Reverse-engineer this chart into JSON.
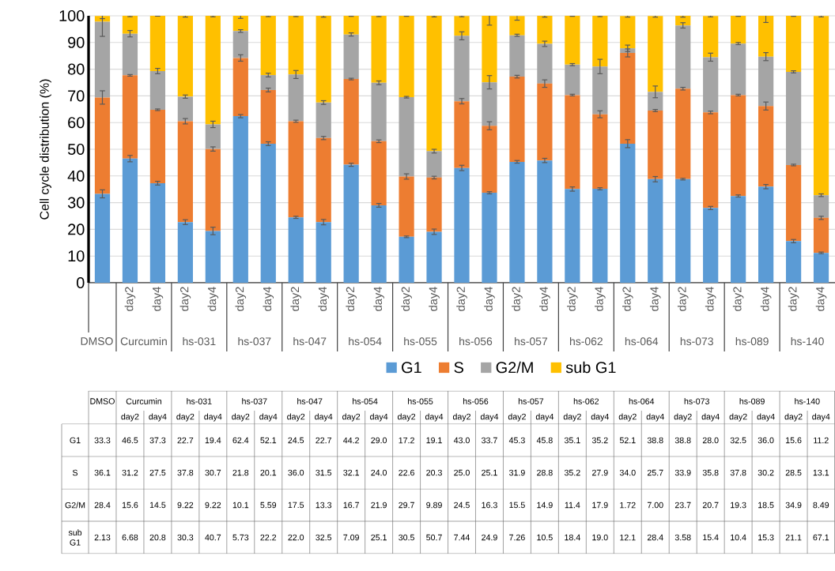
{
  "chart_data": {
    "type": "bar",
    "stacked": true,
    "ylabel": "Cell cycle distribution (%)",
    "categories": [
      null,
      "day2",
      "day4",
      "day2",
      "day4",
      "day2",
      "day4",
      "day2",
      "day4",
      "day2",
      "day4",
      "day2",
      "day4",
      "day2",
      "day4",
      "day2",
      "day4",
      "day2",
      "day4",
      "day2",
      "day4",
      "day2",
      "day4",
      "day2",
      "day4",
      "day2",
      "day4"
    ],
    "annotations": [
      "DMSO",
      "Curcumin",
      "hs-031",
      "hs-037",
      "hs-047",
      "hs-054",
      "hs-055",
      "hs-056",
      "hs-057",
      "hs-062",
      "hs-064",
      "hs-073",
      "hs-089",
      "hs-140"
    ],
    "series": [
      {
        "name": "G1",
        "color": "#5b9bd5",
        "values": [
          33.3,
          46.5,
          37.3,
          22.7,
          19.4,
          62.4,
          52.1,
          24.5,
          22.7,
          44.2,
          29.0,
          17.2,
          19.1,
          43.0,
          33.7,
          45.3,
          45.8,
          35.1,
          35.2,
          52.1,
          38.8,
          38.8,
          28.0,
          32.5,
          36.0,
          15.6,
          11.2
        ],
        "value_labels": [
          "33.3",
          "46.5",
          "37.3",
          "22.7",
          "19.4",
          "62.4",
          "52.1",
          "24.5",
          "22.7",
          "44.2",
          "29.0",
          "17.2",
          "19.1",
          "43.0",
          "33.7",
          "45.3",
          "45.8",
          "35.1",
          "35.2",
          "52.1",
          "38.8",
          "38.8",
          "28.0",
          "32.5",
          "36.0",
          "15.6",
          "11.2"
        ],
        "errors": [
          1.5,
          1.2,
          0.7,
          0.9,
          1.4,
          0.6,
          0.7,
          0.4,
          1.0,
          0.6,
          0.7,
          0.3,
          1.0,
          1.0,
          0.4,
          0.5,
          0.8,
          0.8,
          0.4,
          1.5,
          1.0,
          0.3,
          0.6,
          0.4,
          0.8,
          0.6,
          0.3
        ]
      },
      {
        "name": "S",
        "color": "#ed7d31",
        "values": [
          36.1,
          31.2,
          27.5,
          37.8,
          30.7,
          21.8,
          20.1,
          36.0,
          31.5,
          32.1,
          24.0,
          22.6,
          20.3,
          25.0,
          25.1,
          31.9,
          28.8,
          35.2,
          27.9,
          34.0,
          25.7,
          33.9,
          35.8,
          37.8,
          30.2,
          28.5,
          13.1
        ],
        "value_labels": [
          "36.1",
          "31.2",
          "27.5",
          "37.8",
          "30.7",
          "21.8",
          "20.1",
          "36.0",
          "31.5",
          "32.1",
          "24.0",
          "22.6",
          "20.3",
          "25.0",
          "25.1",
          "31.9",
          "28.8",
          "35.2",
          "27.9",
          "34.0",
          "25.7",
          "33.9",
          "35.8",
          "37.8",
          "30.2",
          "28.5",
          "13.1"
        ],
        "errors": [
          2.5,
          0.3,
          0.3,
          1.0,
          0.8,
          1.2,
          0.7,
          0.4,
          0.6,
          0.3,
          0.5,
          1.0,
          0.5,
          1.0,
          1.5,
          0.5,
          1.4,
          0.3,
          1.3,
          1.5,
          0.4,
          0.5,
          0.5,
          0.3,
          1.5,
          0.3,
          0.6
        ]
      },
      {
        "name": "G2/M",
        "color": "#a5a5a5",
        "values": [
          28.4,
          15.6,
          14.5,
          9.22,
          9.22,
          10.1,
          5.59,
          17.5,
          13.3,
          16.7,
          21.9,
          29.7,
          9.89,
          24.5,
          16.3,
          15.5,
          14.9,
          11.4,
          17.9,
          1.72,
          7.0,
          23.7,
          20.7,
          19.3,
          18.5,
          34.9,
          8.49
        ],
        "value_labels": [
          "28.4",
          "15.6",
          "14.5",
          "9.22",
          "9.22",
          "10.1",
          "5.59",
          "17.5",
          "13.3",
          "16.7",
          "21.9",
          "29.7",
          "9.89",
          "24.5",
          "16.3",
          "15.5",
          "14.9",
          "11.4",
          "17.9",
          "1.72",
          "7.00",
          "23.7",
          "20.7",
          "19.3",
          "18.5",
          "34.9",
          "8.49"
        ],
        "errors": [
          5.5,
          1.2,
          1.0,
          0.6,
          1.2,
          0.5,
          0.7,
          1.5,
          0.7,
          0.6,
          0.7,
          0.3,
          0.7,
          1.5,
          2.5,
          0.4,
          1.0,
          0.4,
          2.7,
          1.2,
          2.2,
          1.0,
          1.5,
          0.4,
          1.5,
          0.4,
          0.5
        ]
      },
      {
        "name": "sub G1",
        "color": "#ffc000",
        "values": [
          2.13,
          6.68,
          20.8,
          30.3,
          40.7,
          5.73,
          22.2,
          22.0,
          32.5,
          7.09,
          25.1,
          30.5,
          50.7,
          7.44,
          24.9,
          7.26,
          10.5,
          18.4,
          19.0,
          12.1,
          28.4,
          3.58,
          15.4,
          10.4,
          15.3,
          21.1,
          67.1
        ],
        "value_labels": [
          "2.13",
          "6.68",
          "20.8",
          "30.3",
          "40.7",
          "5.73",
          "22.2",
          "22.0",
          "32.5",
          "7.09",
          "25.1",
          "30.5",
          "50.7",
          "7.44",
          "24.9",
          "7.26",
          "10.5",
          "18.4",
          "19.0",
          "12.1",
          "28.4",
          "3.58",
          "15.4",
          "10.4",
          "15.3",
          "21.1",
          "67.1"
        ],
        "errors": [
          1.0,
          0.3,
          0.2,
          0.5,
          0.4,
          1.0,
          0.3,
          0.3,
          0.5,
          0.3,
          0.3,
          0.2,
          0.4,
          0.3,
          3.5,
          1.6,
          0.5,
          0.3,
          0.3,
          0.4,
          0.4,
          0.5,
          0.3,
          0.2,
          2.5,
          0.3,
          0.3
        ]
      }
    ],
    "ylim": [
      0,
      100
    ],
    "yticks": [
      0,
      10,
      20,
      30,
      40,
      50,
      60,
      70,
      80,
      90,
      100
    ],
    "grid": "y",
    "legend": "bottom"
  }
}
